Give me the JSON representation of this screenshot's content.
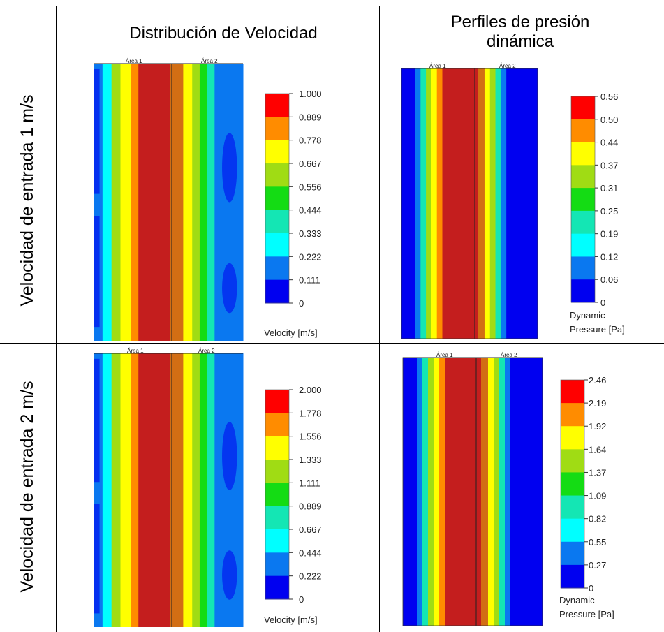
{
  "table": {
    "col_headers": [
      "Distribución de Velocidad",
      "Perfiles de presión dinámica"
    ],
    "row_headers": [
      "Velocidad de entrada 1 m/s",
      "Velocidad de entrada 2 m/s"
    ]
  },
  "colors": {
    "scale": [
      "#0000f0",
      "#0a78f0",
      "#00ffff",
      "#14e6b4",
      "#14dc14",
      "#a0dc14",
      "#ffff00",
      "#ff8c00",
      "#ff0000"
    ],
    "plume": "#c41e1e",
    "orange": "#d26e14"
  },
  "panels": [
    {
      "id": "velocity-1",
      "area_labels": [
        "Área 1",
        "Área 2"
      ],
      "legend_title": [
        "Velocity [m/s]"
      ],
      "ticks": [
        "1.000",
        "0.889",
        "0.778",
        "0.667",
        "0.556",
        "0.444",
        "0.333",
        "0.222",
        "0.111",
        "0"
      ]
    },
    {
      "id": "pressure-1",
      "area_labels": [
        "Área 1",
        "Área 2"
      ],
      "legend_title": [
        "Dynamic",
        "Pressure [Pa]"
      ],
      "ticks": [
        "0.56",
        "0.50",
        "0.44",
        "0.37",
        "0.31",
        "0.25",
        "0.19",
        "0.12",
        "0.06",
        "0"
      ]
    },
    {
      "id": "velocity-2",
      "area_labels": [
        "Área 1",
        "Área 2"
      ],
      "legend_title": [
        "Velocity [m/s]"
      ],
      "ticks": [
        "2.000",
        "1.778",
        "1.556",
        "1.333",
        "1.111",
        "0.889",
        "0.667",
        "0.444",
        "0.222",
        "0"
      ]
    },
    {
      "id": "pressure-2",
      "area_labels": [
        "Área 1",
        "Área 2"
      ],
      "legend_title": [
        "Dynamic",
        "Pressure [Pa]"
      ],
      "ticks": [
        "2.46",
        "2.19",
        "1.92",
        "1.64",
        "1.37",
        "1.09",
        "0.82",
        "0.55",
        "0.27",
        "0"
      ]
    }
  ]
}
